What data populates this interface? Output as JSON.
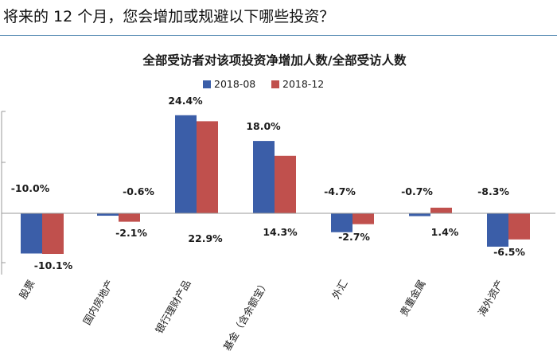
{
  "header": {
    "question": "将来的 12 个月，您会增加或规避以下哪些投资？"
  },
  "chart_data": {
    "type": "bar",
    "title": "全部受访者对该项投资净增加人数/全部受访人数",
    "categories": [
      "股票",
      "国内房地产",
      "银行理财产品",
      "基金（含余额宝）",
      "外汇",
      "贵重金属",
      "海外资产"
    ],
    "series": [
      {
        "name": "2018-08",
        "color": "#3b5ea8",
        "values": [
          -10.0,
          -0.6,
          24.4,
          18.0,
          -4.7,
          -0.7,
          -8.3
        ],
        "labels": [
          "-10.0%",
          "-0.6%",
          "24.4%",
          "18.0%",
          "-4.7%",
          "-0.7%",
          "-8.3%"
        ]
      },
      {
        "name": "2018-12",
        "color": "#c0504d",
        "values": [
          -10.1,
          -2.1,
          22.9,
          14.3,
          -2.7,
          1.4,
          -6.5
        ],
        "labels": [
          "-10.1%",
          "-2.1%",
          "22.9%",
          "14.3%",
          "-2.7%",
          "1.4%",
          "-6.5%"
        ]
      }
    ],
    "ylim": [
      -15,
      27
    ],
    "grid": false,
    "legend_position": "top-right"
  }
}
